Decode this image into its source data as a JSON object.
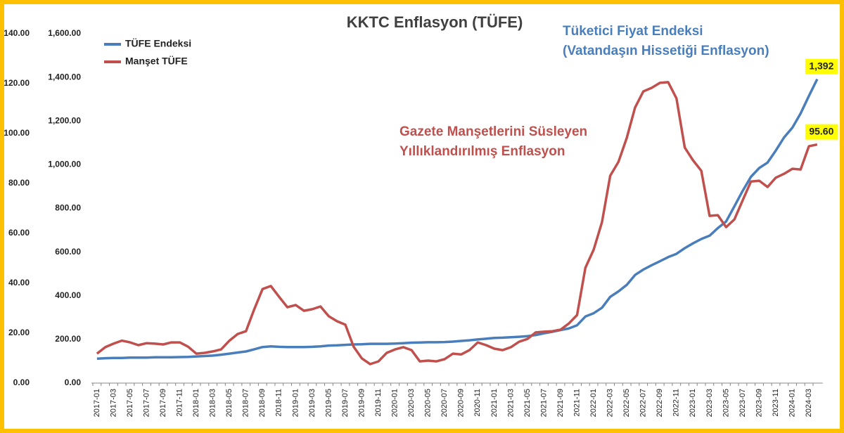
{
  "chart_data": {
    "type": "line",
    "title": "KKTC Enflasyon (TÜFE)",
    "categories": [
      "2017-01",
      null,
      "2017-03",
      null,
      "2017-05",
      null,
      "2017-07",
      null,
      "2017-09",
      null,
      "2017-11",
      null,
      "2018-01",
      null,
      "2018-03",
      null,
      "2018-05",
      null,
      "2018-07",
      null,
      "2018-09",
      null,
      "2018-11",
      null,
      "2019-01",
      null,
      "2019-03",
      null,
      "2019-05",
      null,
      "2019-07",
      null,
      "2019-09",
      null,
      "2019-11",
      null,
      "2020-01",
      null,
      "2020-03",
      null,
      "2020-05",
      null,
      "2020-07",
      null,
      "2020-09",
      null,
      "2020-11",
      null,
      "2021-01",
      null,
      "2021-03",
      null,
      "2021-05",
      null,
      "2021-07",
      null,
      "2021-09",
      null,
      "2021-11",
      null,
      "2022-01",
      null,
      "2022-03",
      null,
      "2022-05",
      null,
      "2022-07",
      null,
      "2022-09",
      null,
      "2022-11",
      null,
      "2023-01",
      null,
      "2023-03",
      null,
      "2023-05",
      null,
      "2023-07",
      null,
      "2023-09",
      null,
      "2023-11",
      null,
      "2024-01",
      null,
      "2024-03",
      null
    ],
    "series": [
      {
        "name": "TÜFE Endeksi",
        "color": "#4a7ebb",
        "values": [
          112,
          114,
          115,
          115,
          117,
          117,
          117,
          118,
          118,
          118,
          119,
          120,
          122,
          124,
          126,
          130,
          135,
          140,
          145,
          155,
          165,
          168,
          166,
          165,
          165,
          165,
          166,
          168,
          172,
          173,
          175,
          177,
          178,
          180,
          180,
          180,
          181,
          183,
          185,
          186,
          187,
          187,
          188,
          190,
          193,
          196,
          200,
          203,
          207,
          208,
          210,
          212,
          215,
          220,
          228,
          235,
          243,
          250,
          265,
          305,
          320,
          345,
          395,
          420,
          450,
          495,
          520,
          540,
          558,
          577,
          592,
          618,
          640,
          660,
          675,
          710,
          740,
          810,
          880,
          945,
          985,
          1010,
          1065,
          1125,
          1170,
          1235,
          1315,
          1392
        ],
        "value_labels": [
          null,
          null,
          null,
          null,
          null,
          null,
          null,
          null,
          null,
          null,
          null,
          null,
          null,
          null,
          null,
          null,
          null,
          null,
          null,
          null,
          null,
          null,
          null,
          null,
          null,
          null,
          null,
          null,
          null,
          null,
          null,
          null,
          null,
          null,
          null,
          null,
          null,
          null,
          null,
          null,
          null,
          null,
          null,
          null,
          null,
          null,
          null,
          null,
          null,
          null,
          null,
          null,
          null,
          null,
          null,
          null,
          null,
          null,
          null,
          null,
          null,
          null,
          null,
          null,
          null,
          null,
          null,
          null,
          null,
          null,
          null,
          null,
          null,
          null,
          null,
          null,
          null,
          null,
          null,
          null,
          null,
          null,
          null,
          null,
          null,
          null,
          null,
          "1,392"
        ]
      },
      {
        "name": "Manşet TÜFE",
        "color": "#c0504d",
        "axis": "y2",
        "values": [
          11.8,
          14.4,
          15.8,
          17,
          16.3,
          15.2,
          16,
          15.8,
          15.5,
          16.3,
          16.3,
          14.6,
          11.8,
          12.1,
          12.7,
          13.5,
          17,
          19.7,
          20.8,
          29.6,
          37.7,
          38.9,
          34.6,
          30.4,
          31.3,
          29,
          29.6,
          30.7,
          26.8,
          24.8,
          23.4,
          14.6,
          9.9,
          7.6,
          8.7,
          12.1,
          13.5,
          14.4,
          13.2,
          8.7,
          9,
          8.7,
          9.6,
          11.8,
          11.5,
          13.2,
          16.3,
          15.2,
          13.8,
          13.2,
          14.4,
          16.6,
          17.7,
          20.3,
          20.6,
          20.8,
          21.4,
          23.9,
          27.3,
          46.2,
          53.5,
          64.5,
          83.1,
          88.7,
          98.3,
          110.4,
          116.9,
          118.3,
          120.3,
          120.6,
          114.1,
          94.4,
          89.3,
          85.1,
          67,
          67.3,
          62.5,
          65.6,
          73.2,
          80.8,
          81.1,
          78.6,
          82.3,
          83.9,
          85.9,
          85.6,
          94.9,
          95.6
        ],
        "value_labels": [
          null,
          null,
          null,
          null,
          null,
          null,
          null,
          null,
          null,
          null,
          null,
          null,
          null,
          null,
          null,
          null,
          null,
          null,
          null,
          null,
          null,
          null,
          null,
          null,
          null,
          null,
          null,
          null,
          null,
          null,
          null,
          null,
          null,
          null,
          null,
          null,
          null,
          null,
          null,
          null,
          null,
          null,
          null,
          null,
          null,
          null,
          null,
          null,
          null,
          null,
          null,
          null,
          null,
          null,
          null,
          null,
          null,
          null,
          null,
          null,
          null,
          null,
          null,
          null,
          null,
          null,
          null,
          null,
          null,
          null,
          null,
          null,
          null,
          null,
          null,
          null,
          null,
          null,
          null,
          null,
          null,
          null,
          null,
          null,
          null,
          null,
          null,
          "95.60"
        ]
      }
    ],
    "ylim": [
      0,
      1600
    ],
    "yticks": [
      {
        "value": 0,
        "label": "0.00"
      },
      {
        "value": 200,
        "label": "200.00"
      },
      {
        "value": 400,
        "label": "400.00"
      },
      {
        "value": 600,
        "label": "600.00"
      },
      {
        "value": 800,
        "label": "800.00"
      },
      {
        "value": 1000,
        "label": "1,000.00"
      },
      {
        "value": 1200,
        "label": "1,200.00"
      },
      {
        "value": 1400,
        "label": "1,400.00"
      },
      {
        "value": 1600,
        "label": "1,600.00"
      }
    ],
    "y2lim": [
      0,
      140
    ],
    "y2ticks": [
      {
        "value": 0,
        "label": "0.00"
      },
      {
        "value": 20,
        "label": "20.00"
      },
      {
        "value": 40,
        "label": "40.00"
      },
      {
        "value": 60,
        "label": "60.00"
      },
      {
        "value": 80,
        "label": "80.00"
      },
      {
        "value": 100,
        "label": "100.00"
      },
      {
        "value": 120,
        "label": "120.00"
      },
      {
        "value": 140,
        "label": "140.00"
      }
    ],
    "grid": false,
    "legend": "upper left",
    "annotations": [
      {
        "text": "Tüketici Fiyat Endeksi",
        "color": "#4a7ebb"
      },
      {
        "text": "(Vatandaşın Hissetiği Enflasyon)",
        "color": "#4a7ebb"
      },
      {
        "text": "Gazete Manşetlerini Süsleyen",
        "color": "#c0504d"
      },
      {
        "text": "Yıllıklandırılmış Enflasyon",
        "color": "#c0504d"
      }
    ]
  }
}
